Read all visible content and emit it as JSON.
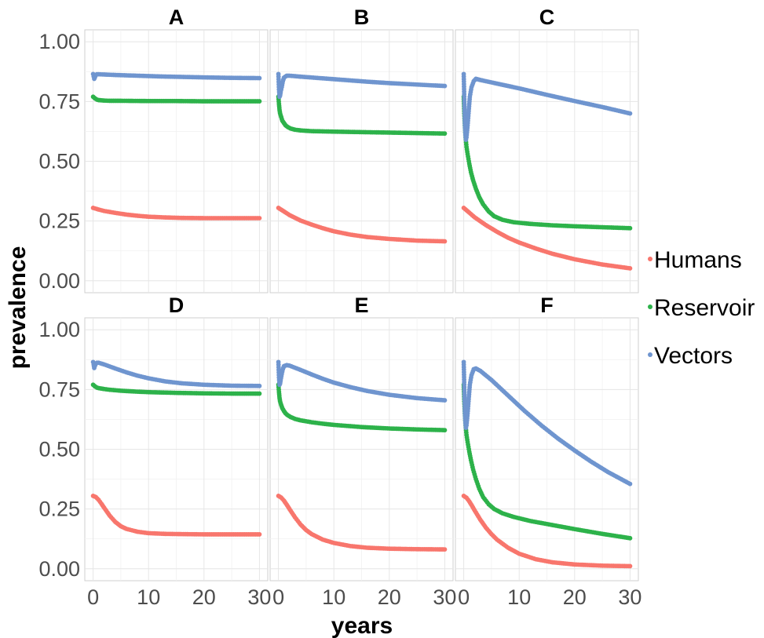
{
  "chart_data": {
    "type": "scatter",
    "xlabel": "years",
    "ylabel": "prevalence",
    "xlim": [
      -1.5,
      31.5
    ],
    "ylim": [
      -0.05,
      1.05
    ],
    "x_ticks": [
      0,
      10,
      20,
      30
    ],
    "x_tick_labels": [
      "0",
      "10",
      "20",
      "30"
    ],
    "y_ticks": [
      0,
      0.25,
      0.5,
      0.75,
      1.0
    ],
    "y_tick_labels": [
      "0.00",
      "0.25",
      "0.50",
      "0.75",
      "1.00"
    ],
    "grid": true,
    "legend_position": "right",
    "colors": {
      "Humans": "#F8766D",
      "Reservoir": "#2DB24A",
      "Vectors": "#6F95CF"
    },
    "series_order": [
      "Humans",
      "Reservoir",
      "Vectors"
    ],
    "panels": [
      {
        "title": "A",
        "series": [
          {
            "name": "Humans",
            "x": [
              0,
              1,
              2,
              4,
              6,
              8,
              10,
              13,
              16,
              20,
              25,
              30
            ],
            "y": [
              0.305,
              0.298,
              0.292,
              0.284,
              0.277,
              0.272,
              0.268,
              0.265,
              0.263,
              0.262,
              0.262,
              0.262
            ]
          },
          {
            "name": "Reservoir",
            "x": [
              0,
              0.2,
              0.4,
              0.7,
              1,
              1.5,
              2,
              3,
              5,
              10,
              15,
              20,
              25,
              30
            ],
            "y": [
              0.77,
              0.766,
              0.762,
              0.758,
              0.756,
              0.755,
              0.754,
              0.753,
              0.753,
              0.752,
              0.752,
              0.751,
              0.751,
              0.751
            ]
          },
          {
            "name": "Vectors",
            "x": [
              0,
              0.1,
              0.2,
              0.3,
              0.5,
              0.7,
              1,
              2,
              4,
              8,
              12,
              16,
              20,
              25,
              30
            ],
            "y": [
              0.865,
              0.855,
              0.845,
              0.85,
              0.862,
              0.864,
              0.864,
              0.863,
              0.861,
              0.858,
              0.855,
              0.853,
              0.851,
              0.849,
              0.848
            ]
          }
        ]
      },
      {
        "title": "B",
        "series": [
          {
            "name": "Humans",
            "x": [
              0,
              1,
              2,
              4,
              6,
              8,
              10,
              13,
              16,
              20,
              25,
              30
            ],
            "y": [
              0.305,
              0.29,
              0.275,
              0.252,
              0.235,
              0.22,
              0.207,
              0.193,
              0.183,
              0.175,
              0.168,
              0.165
            ]
          },
          {
            "name": "Reservoir",
            "x": [
              0,
              0.1,
              0.2,
              0.3,
              0.5,
              0.7,
              1,
              1.3,
              1.7,
              2.2,
              3,
              4,
              6,
              10,
              15,
              20,
              25,
              30
            ],
            "y": [
              0.77,
              0.74,
              0.715,
              0.7,
              0.685,
              0.67,
              0.66,
              0.65,
              0.643,
              0.637,
              0.632,
              0.629,
              0.626,
              0.624,
              0.622,
              0.62,
              0.618,
              0.616
            ]
          },
          {
            "name": "Vectors",
            "x": [
              0,
              0.1,
              0.2,
              0.3,
              0.4,
              0.6,
              0.8,
              1,
              1.5,
              2,
              4,
              8,
              12,
              16,
              20,
              25,
              30
            ],
            "y": [
              0.865,
              0.8,
              0.77,
              0.775,
              0.79,
              0.81,
              0.835,
              0.85,
              0.858,
              0.858,
              0.854,
              0.847,
              0.84,
              0.833,
              0.827,
              0.821,
              0.815
            ]
          }
        ]
      },
      {
        "title": "C",
        "series": [
          {
            "name": "Humans",
            "x": [
              0,
              1,
              2,
              4,
              6,
              8,
              10,
              13,
              16,
              20,
              25,
              30
            ],
            "y": [
              0.305,
              0.285,
              0.265,
              0.233,
              0.205,
              0.18,
              0.16,
              0.135,
              0.113,
              0.09,
              0.068,
              0.052
            ]
          },
          {
            "name": "Reservoir",
            "x": [
              0,
              0.1,
              0.2,
              0.3,
              0.5,
              0.7,
              1,
              1.3,
              1.7,
              2.2,
              2.8,
              3.5,
              4.5,
              5.5,
              7,
              9,
              12,
              16,
              20,
              25,
              30
            ],
            "y": [
              0.77,
              0.7,
              0.65,
              0.61,
              0.56,
              0.53,
              0.49,
              0.455,
              0.42,
              0.385,
              0.35,
              0.32,
              0.29,
              0.27,
              0.255,
              0.245,
              0.238,
              0.232,
              0.228,
              0.224,
              0.22
            ]
          },
          {
            "name": "Vectors",
            "x": [
              0,
              0.1,
              0.2,
              0.3,
              0.4,
              0.5,
              0.7,
              0.9,
              1.1,
              1.4,
              1.8,
              2.2,
              3,
              4,
              6,
              10,
              15,
              20,
              25,
              30
            ],
            "y": [
              0.865,
              0.76,
              0.66,
              0.61,
              0.59,
              0.6,
              0.65,
              0.71,
              0.77,
              0.81,
              0.835,
              0.845,
              0.84,
              0.835,
              0.825,
              0.805,
              0.778,
              0.752,
              0.727,
              0.7
            ]
          }
        ]
      },
      {
        "title": "D",
        "series": [
          {
            "name": "Humans",
            "x": [
              0,
              0.5,
              1,
              1.5,
              2,
              3,
              4,
              5,
              6,
              8,
              10,
              13,
              16,
              20,
              25,
              30
            ],
            "y": [
              0.305,
              0.3,
              0.288,
              0.272,
              0.255,
              0.222,
              0.196,
              0.178,
              0.167,
              0.155,
              0.149,
              0.146,
              0.145,
              0.144,
              0.144,
              0.144
            ]
          },
          {
            "name": "Reservoir",
            "x": [
              0,
              0.2,
              0.4,
              0.7,
              1,
              1.5,
              2,
              3,
              5,
              8,
              10,
              15,
              20,
              25,
              30
            ],
            "y": [
              0.77,
              0.766,
              0.762,
              0.758,
              0.756,
              0.754,
              0.752,
              0.749,
              0.745,
              0.741,
              0.739,
              0.736,
              0.734,
              0.733,
              0.733
            ]
          },
          {
            "name": "Vectors",
            "x": [
              0,
              0.1,
              0.2,
              0.3,
              0.5,
              0.7,
              1,
              2,
              4,
              6,
              8,
              10,
              13,
              16,
              20,
              25,
              30
            ],
            "y": [
              0.865,
              0.855,
              0.84,
              0.848,
              0.858,
              0.862,
              0.862,
              0.855,
              0.838,
              0.822,
              0.808,
              0.797,
              0.784,
              0.776,
              0.77,
              0.766,
              0.765
            ]
          }
        ]
      },
      {
        "title": "E",
        "series": [
          {
            "name": "Humans",
            "x": [
              0,
              0.5,
              1,
              1.5,
              2,
              3,
              4,
              5,
              6,
              8,
              10,
              13,
              16,
              20,
              25,
              30
            ],
            "y": [
              0.305,
              0.298,
              0.285,
              0.268,
              0.25,
              0.215,
              0.185,
              0.162,
              0.145,
              0.122,
              0.108,
              0.095,
              0.088,
              0.084,
              0.082,
              0.081
            ]
          },
          {
            "name": "Reservoir",
            "x": [
              0,
              0.1,
              0.2,
              0.3,
              0.5,
              0.7,
              1,
              1.3,
              1.7,
              2.2,
              3,
              4,
              6,
              8,
              10,
              15,
              20,
              25,
              30
            ],
            "y": [
              0.77,
              0.74,
              0.715,
              0.7,
              0.685,
              0.672,
              0.66,
              0.65,
              0.642,
              0.635,
              0.627,
              0.621,
              0.613,
              0.607,
              0.602,
              0.593,
              0.587,
              0.583,
              0.58
            ]
          },
          {
            "name": "Vectors",
            "x": [
              0,
              0.1,
              0.2,
              0.3,
              0.4,
              0.6,
              0.8,
              1,
              1.5,
              2,
              4,
              6,
              8,
              10,
              13,
              16,
              20,
              25,
              30
            ],
            "y": [
              0.865,
              0.8,
              0.77,
              0.775,
              0.79,
              0.815,
              0.835,
              0.848,
              0.852,
              0.85,
              0.832,
              0.813,
              0.795,
              0.779,
              0.76,
              0.744,
              0.728,
              0.714,
              0.705
            ]
          }
        ]
      },
      {
        "title": "F",
        "series": [
          {
            "name": "Humans",
            "x": [
              0,
              0.5,
              1,
              1.5,
              2,
              3,
              4,
              5,
              6,
              8,
              10,
              13,
              16,
              20,
              25,
              30
            ],
            "y": [
              0.305,
              0.297,
              0.282,
              0.263,
              0.243,
              0.205,
              0.172,
              0.145,
              0.122,
              0.088,
              0.063,
              0.04,
              0.027,
              0.018,
              0.013,
              0.011
            ]
          },
          {
            "name": "Reservoir",
            "x": [
              0,
              0.1,
              0.2,
              0.3,
              0.5,
              0.7,
              1,
              1.3,
              1.7,
              2.2,
              2.8,
              3.5,
              4.5,
              5.5,
              7,
              9,
              12,
              16,
              20,
              25,
              30
            ],
            "y": [
              0.77,
              0.7,
              0.65,
              0.61,
              0.56,
              0.53,
              0.49,
              0.455,
              0.415,
              0.375,
              0.335,
              0.3,
              0.27,
              0.25,
              0.232,
              0.217,
              0.2,
              0.183,
              0.166,
              0.146,
              0.128
            ]
          },
          {
            "name": "Vectors",
            "x": [
              0,
              0.1,
              0.2,
              0.3,
              0.4,
              0.5,
              0.7,
              0.9,
              1.1,
              1.4,
              1.8,
              2.2,
              3,
              5,
              8,
              11,
              14,
              17,
              20,
              23,
              26,
              30
            ],
            "y": [
              0.865,
              0.76,
              0.66,
              0.61,
              0.59,
              0.6,
              0.65,
              0.71,
              0.77,
              0.81,
              0.835,
              0.838,
              0.828,
              0.79,
              0.725,
              0.66,
              0.6,
              0.545,
              0.495,
              0.448,
              0.405,
              0.355
            ]
          }
        ]
      }
    ]
  }
}
